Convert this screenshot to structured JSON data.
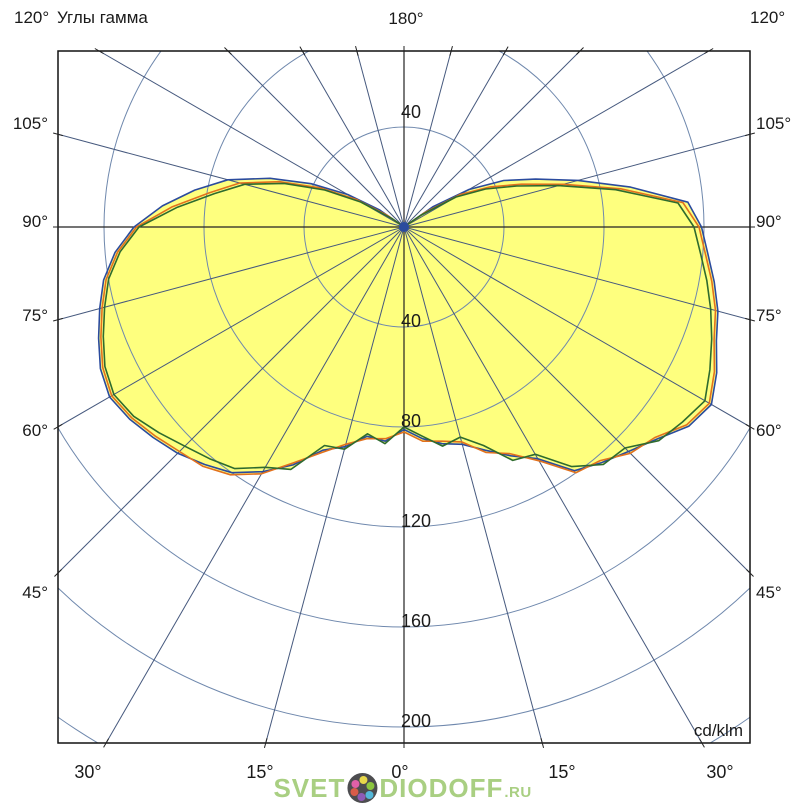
{
  "header": {
    "corner_left_angle": "120°",
    "title": "Углы гамма",
    "top_center_angle": "180°",
    "corner_right_angle": "120°"
  },
  "unit_label": "cd/klm",
  "watermark": {
    "part1": "SVET",
    "part2": "DIODOFF",
    "suffix": ".RU",
    "color": "#a9cf82",
    "logo_dot_colors": [
      "#e060a8",
      "#e8d84b",
      "#8cc63f",
      "#53b7d8",
      "#8e5bb5",
      "#d85c4a"
    ]
  },
  "chart_data": {
    "type": "polar",
    "title": "Углы гамма",
    "radial_unit": "cd/klm",
    "radial_tick_step": 40,
    "radial_tick_label_above": "40",
    "radial_tick_labels_below": [
      "40",
      "80",
      "120",
      "160",
      "200"
    ],
    "angle_labels_left": [
      "105°",
      "90°",
      "75°",
      "60°",
      "45°"
    ],
    "angle_labels_right": [
      "105°",
      "90°",
      "75°",
      "60°",
      "45°"
    ],
    "angle_labels_bottom": [
      "30°",
      "15°",
      "0°",
      "15°",
      "30°"
    ],
    "angle_label_top": "180°",
    "corner_angle_labels": [
      "120°",
      "120°"
    ],
    "spoke_step_deg": 15,
    "fill_color": "#feff7e",
    "grid": {
      "circle_color": "#6f88ad",
      "spoke_color": "#46597e",
      "axis_color": "#222222",
      "frame_color": "#111111"
    },
    "gamma_deg": [
      -125,
      -120,
      -115,
      -110,
      -105,
      -100,
      -95,
      -90,
      -85,
      -80,
      -75,
      -70,
      -65,
      -60,
      -55,
      -50,
      -45,
      -40,
      -35,
      -30,
      -25,
      -20,
      -15,
      -10,
      -5,
      0,
      5,
      10,
      15,
      20,
      25,
      30,
      35,
      40,
      45,
      50,
      55,
      60,
      65,
      70,
      75,
      80,
      85,
      90,
      95,
      100,
      105,
      110,
      115,
      120,
      125
    ],
    "series": [
      {
        "name": "curve-blue",
        "color": "#2b4b9e",
        "values": [
          12,
          26,
          41,
          57,
          73,
          85,
          97,
          108,
          116,
          122,
          126,
          130,
          134,
          136,
          134,
          131,
          128,
          124,
          120,
          113,
          105,
          95,
          91,
          85,
          86,
          81,
          85,
          88,
          90,
          95,
          101,
          107,
          119,
          123,
          127,
          132,
          139,
          142,
          138,
          133,
          130,
          126,
          122,
          119,
          114,
          92,
          72,
          56,
          44,
          30,
          14
        ]
      },
      {
        "name": "curve-orange",
        "color": "#e2711d",
        "values": [
          8,
          22,
          37,
          53,
          68,
          79,
          93,
          107,
          115,
          121,
          125,
          129,
          133,
          135,
          133,
          130,
          127,
          125,
          121,
          114,
          104,
          96,
          90,
          86,
          85,
          82,
          86,
          87,
          89,
          96,
          100,
          108,
          120,
          122,
          128,
          131,
          138,
          141,
          137,
          132,
          129,
          125,
          121,
          118,
          112,
          88,
          66,
          50,
          38,
          26,
          10
        ]
      },
      {
        "name": "curve-green",
        "color": "#2e6b2e",
        "values": [
          6,
          20,
          35,
          51,
          66,
          77,
          91,
          106,
          114,
          120,
          124,
          128,
          132,
          134,
          132,
          128,
          124,
          121,
          118,
          111,
          107,
          93,
          92,
          84,
          87,
          80,
          84,
          89,
          87,
          93,
          103,
          105,
          117,
          124,
          125,
          133,
          136,
          139,
          135,
          131,
          127,
          123,
          119,
          116,
          110,
          86,
          64,
          48,
          36,
          24,
          8
        ]
      }
    ]
  }
}
